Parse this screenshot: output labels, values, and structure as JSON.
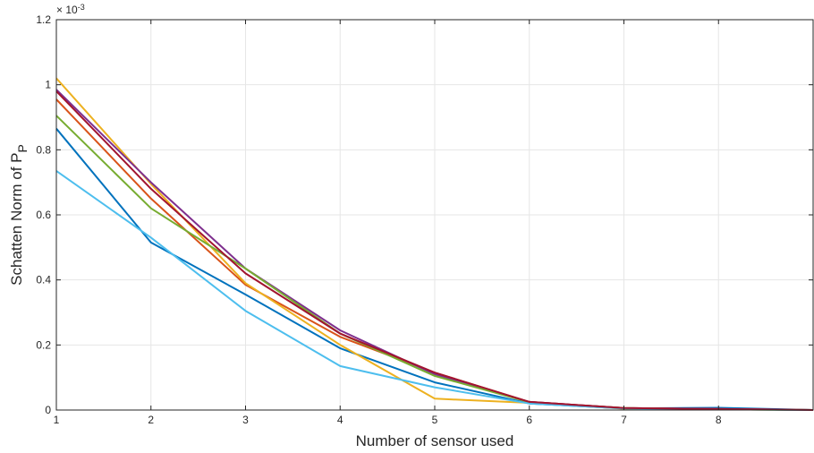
{
  "chart_data": {
    "type": "line",
    "xlabel": "Number of sensor used",
    "ylabel": "Schatten Norm of P",
    "ylabel_subscript": "P",
    "exponent_base": "× 10",
    "exponent_power": "-3",
    "xlim": [
      1,
      9
    ],
    "ylim": [
      0,
      1.2
    ],
    "grid": true,
    "x": [
      1,
      2,
      3,
      4,
      5,
      6,
      7,
      8,
      9
    ],
    "x_tick_labels": [
      "1",
      "2",
      "3",
      "4",
      "5",
      "6",
      "7",
      "8"
    ],
    "y_tick_labels": [
      "0",
      "0.2",
      "0.4",
      "0.6",
      "0.8",
      "1",
      "1.2"
    ],
    "y_ticks": [
      0,
      0.2,
      0.4,
      0.6,
      0.8,
      1.0,
      1.2
    ],
    "series": [
      {
        "color": "#0072BD",
        "values": [
          0.865,
          0.515,
          0.355,
          0.19,
          0.085,
          0.02,
          0.005,
          0.007,
          0.0
        ]
      },
      {
        "color": "#D95319",
        "values": [
          0.955,
          0.65,
          0.385,
          0.225,
          0.115,
          0.025,
          0.006,
          0.003,
          0.0
        ]
      },
      {
        "color": "#EDB120",
        "values": [
          1.02,
          0.695,
          0.39,
          0.2,
          0.035,
          0.022,
          0.004,
          0.002,
          0.0
        ]
      },
      {
        "color": "#7E2F8E",
        "values": [
          0.985,
          0.7,
          0.435,
          0.245,
          0.11,
          0.025,
          0.006,
          0.003,
          0.0
        ]
      },
      {
        "color": "#77AC30",
        "values": [
          0.905,
          0.62,
          0.435,
          0.235,
          0.105,
          0.024,
          0.006,
          0.002,
          0.0
        ]
      },
      {
        "color": "#4DBEEE",
        "values": [
          0.735,
          0.53,
          0.305,
          0.135,
          0.07,
          0.02,
          0.005,
          0.002,
          0.0
        ]
      },
      {
        "color": "#A2142F",
        "values": [
          0.98,
          0.68,
          0.42,
          0.235,
          0.115,
          0.025,
          0.006,
          0.003,
          0.0
        ]
      }
    ]
  }
}
